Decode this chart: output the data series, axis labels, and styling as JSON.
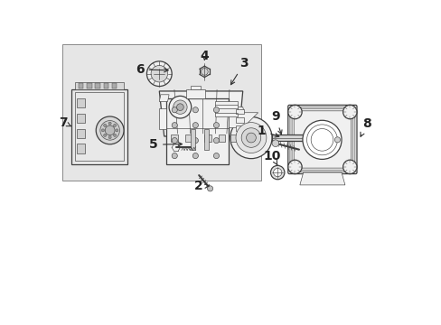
{
  "bg": "#ffffff",
  "lc": "#404040",
  "lc2": "#606060",
  "fill_light": "#f0f0f0",
  "fill_box": "#e8e8e8",
  "lw_main": 0.9,
  "lw_thin": 0.45,
  "lw_thick": 1.2,
  "fig_w": 4.89,
  "fig_h": 3.6,
  "dpi": 100,
  "xlim": [
    0,
    489
  ],
  "ylim": [
    0,
    360
  ]
}
